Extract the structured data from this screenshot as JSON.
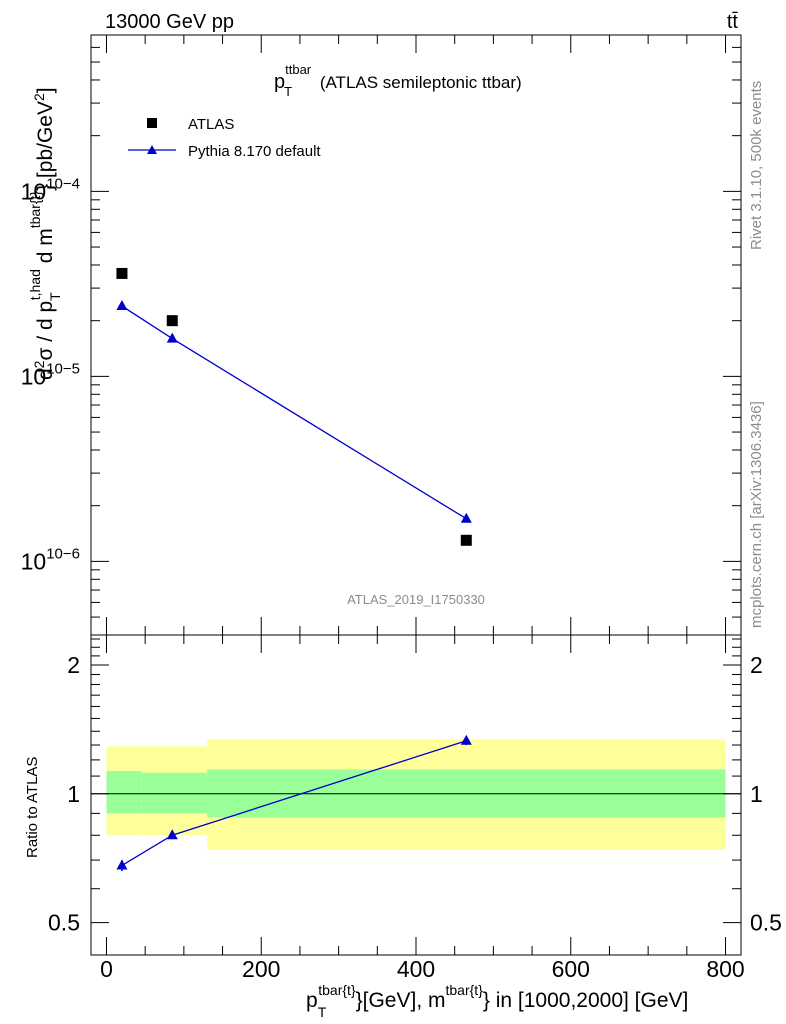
{
  "header": {
    "left": "13000 GeV pp",
    "right": "tt̄"
  },
  "side_labels": {
    "rivet": "Rivet 3.1.10,  500k events",
    "mcplots": "mcplots.cern.ch [arXiv:1306.3436]"
  },
  "plot_title": {
    "main": "p",
    "sub": "T",
    "sup": "ttbar",
    "rest": " (ATLAS semileptonic ttbar)"
  },
  "watermark": "ATLAS_2019_I1750330",
  "colors": {
    "mc": "#0000cc",
    "data": "#000000",
    "band_outer": "#ffff99",
    "band_inner": "#99ff99"
  },
  "chart_data": [
    {
      "type": "scatter",
      "panel": "main",
      "yscale": "log",
      "xlim": [
        -20,
        820
      ],
      "ylim": [
        4e-07,
        0.0007
      ],
      "ylabel": "d²σ / d p_T^{t,had} d m^{tbar{t}} [pb/GeV²]",
      "ytick_labels": [
        "10−6",
        "10−5",
        "10−4"
      ],
      "series": [
        {
          "name": "ATLAS",
          "marker": "square",
          "x": [
            20,
            85,
            465
          ],
          "y": [
            3.6e-05,
            2e-05,
            1.3e-06
          ]
        },
        {
          "name": "Pythia 8.170 default",
          "marker": "triangle",
          "line": true,
          "x": [
            20,
            85,
            465
          ],
          "y": [
            2.4e-05,
            1.6e-05,
            1.7e-06
          ]
        }
      ]
    },
    {
      "type": "line",
      "panel": "ratio",
      "yscale": "log",
      "xlim": [
        -20,
        820
      ],
      "ylim": [
        0.42,
        2.35
      ],
      "xlabel": "p_T^{tbar{t}}[GeV], m^{tbar{t}} in [1000,2000] [GeV]",
      "ylabel": "Ratio to ATLAS",
      "ytick_labels": [
        "0.5",
        "1",
        "2"
      ],
      "xtick_labels": [
        "0",
        "200",
        "400",
        "600",
        "800"
      ],
      "reference_line": 1,
      "uncertainty_bands": [
        {
          "x0": 0,
          "x1": 45,
          "outer": [
            0.8,
            1.29
          ],
          "inner": [
            0.9,
            1.13
          ]
        },
        {
          "x0": 45,
          "x1": 130,
          "outer": [
            0.8,
            1.29
          ],
          "inner": [
            0.9,
            1.12
          ]
        },
        {
          "x0": 130,
          "x1": 800,
          "outer": [
            0.74,
            1.34
          ],
          "inner": [
            0.88,
            1.14
          ]
        }
      ],
      "series": [
        {
          "name": "Pythia 8.170 default",
          "x": [
            20,
            85,
            465
          ],
          "y": [
            0.68,
            0.8,
            1.33
          ],
          "yerr": [
            0.02,
            0.015,
            0.03
          ]
        }
      ]
    }
  ],
  "legend": [
    {
      "label": "ATLAS",
      "marker": "square"
    },
    {
      "label": "Pythia 8.170 default",
      "marker": "triangle"
    }
  ]
}
